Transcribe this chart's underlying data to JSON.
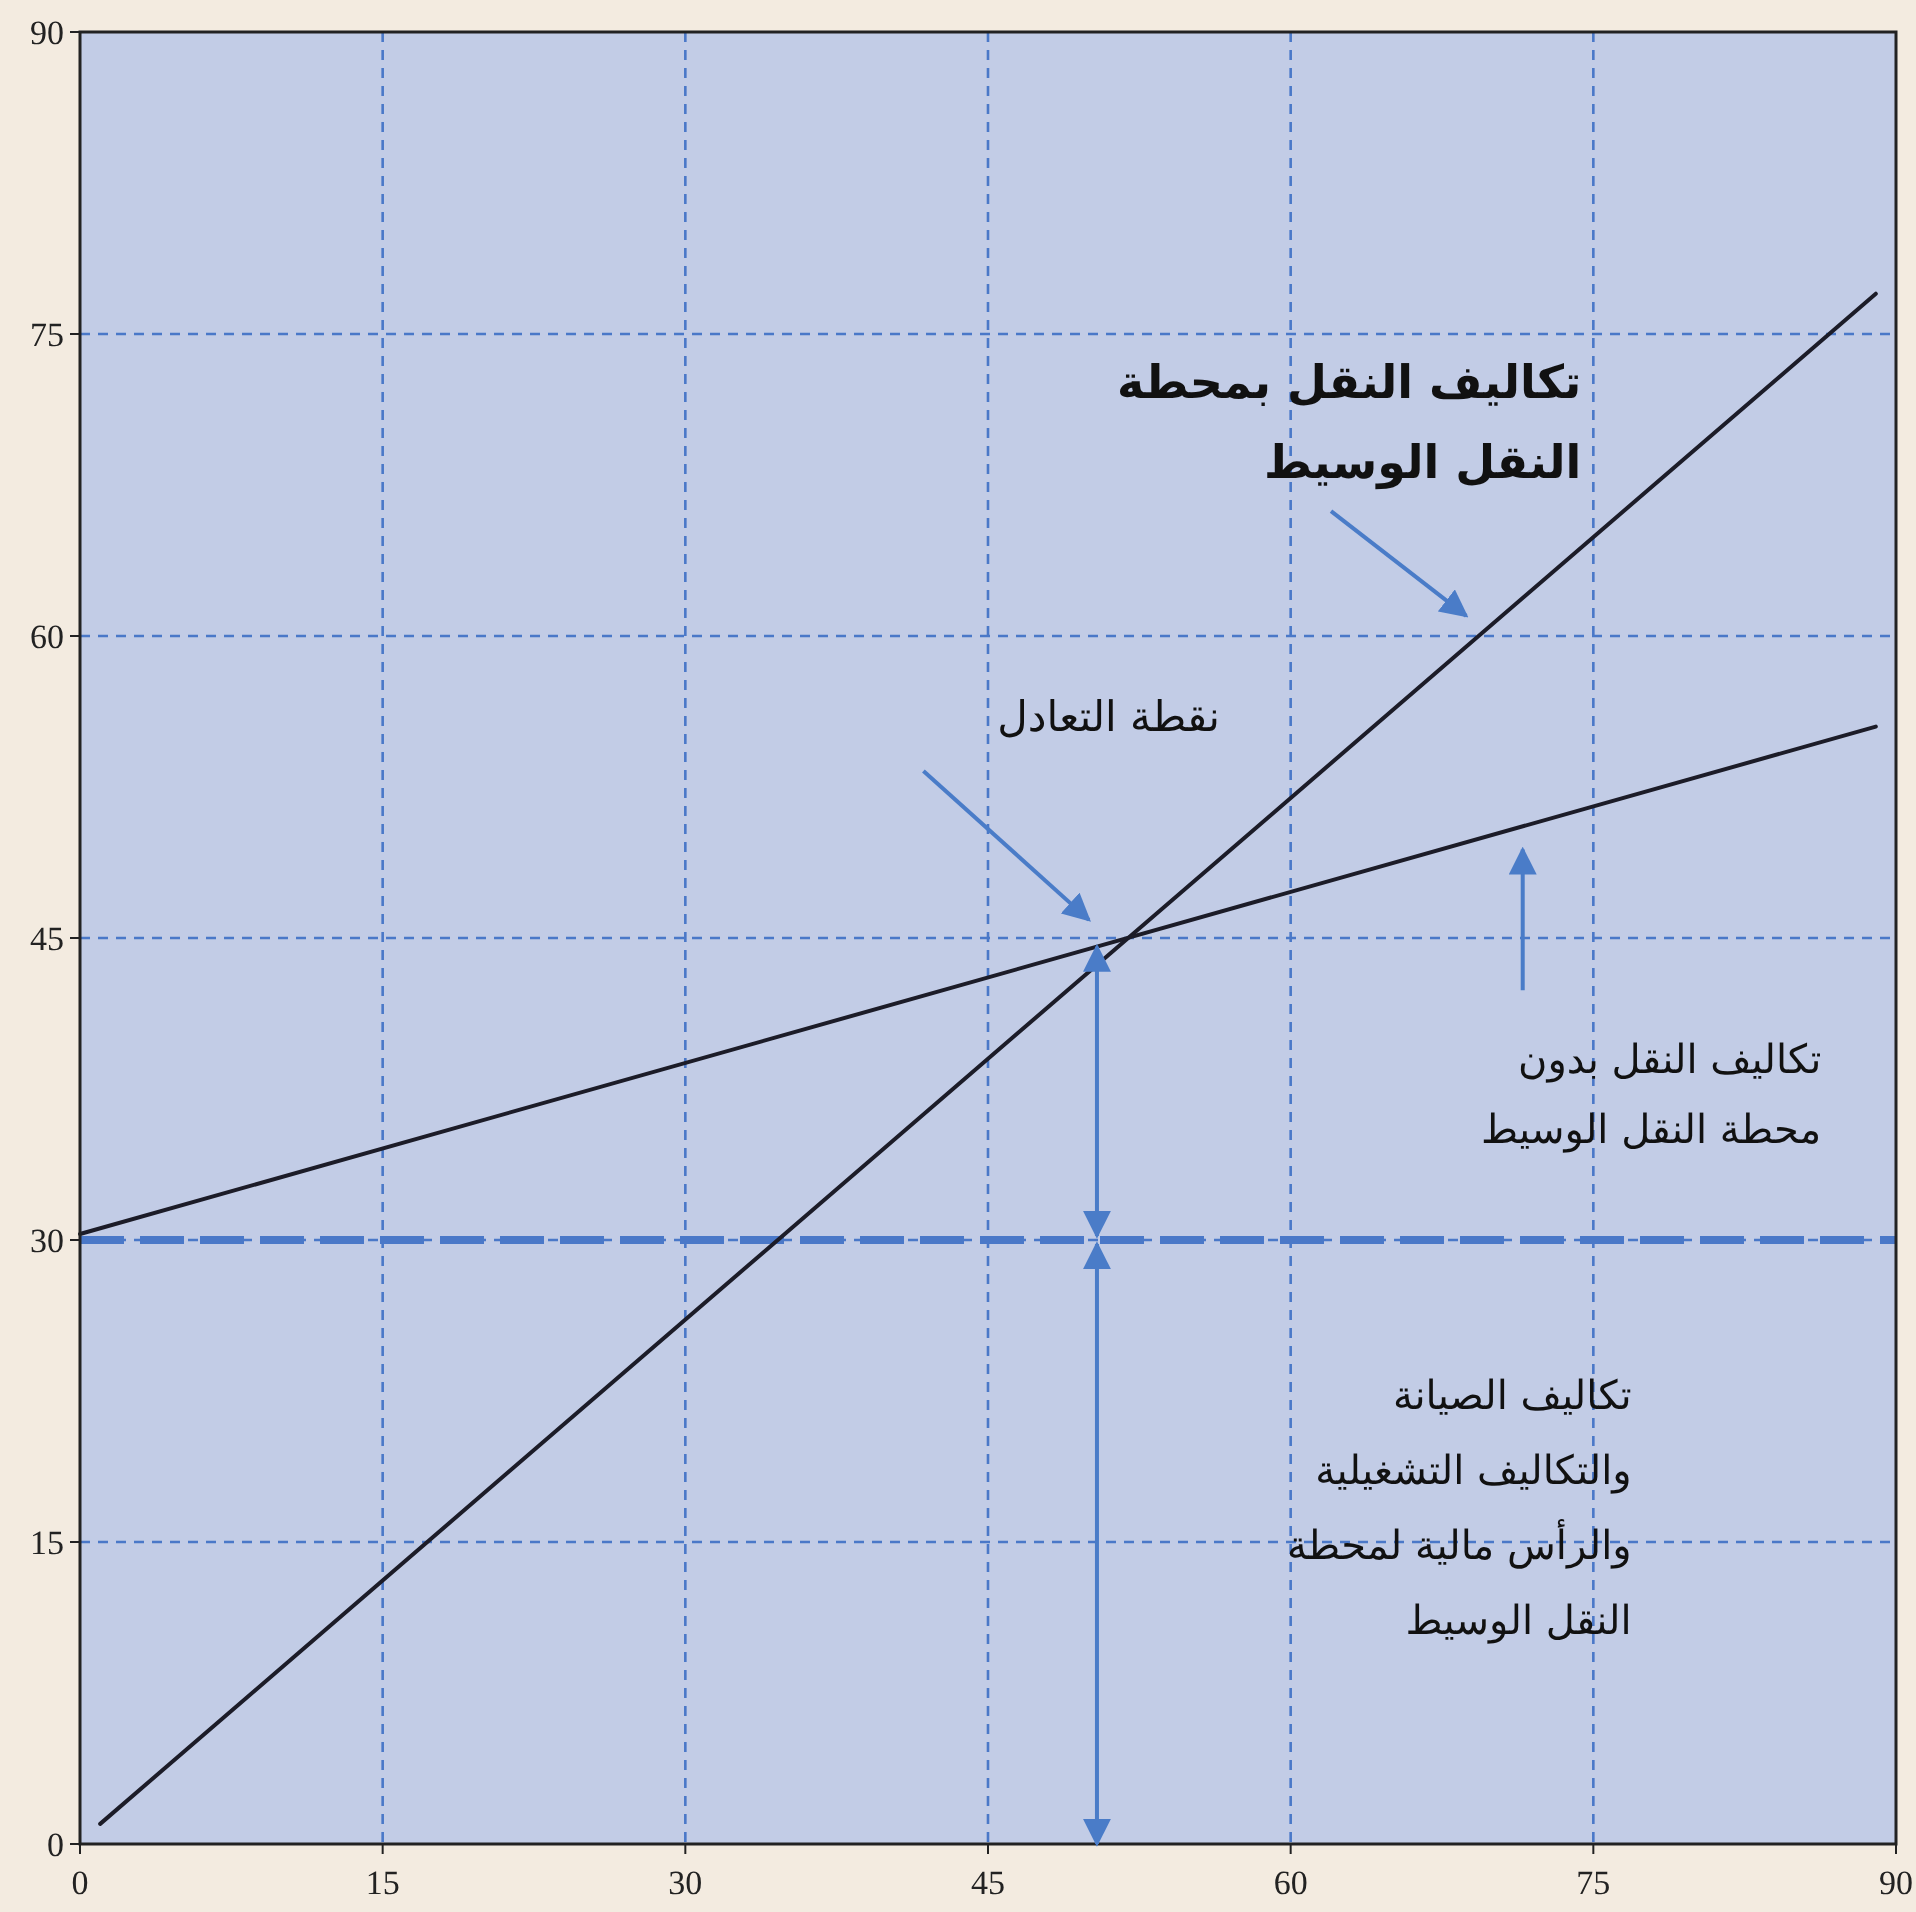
{
  "chart_data": {
    "type": "line",
    "xlim": [
      0,
      90
    ],
    "ylim": [
      0,
      90
    ],
    "xticks": [
      0,
      15,
      30,
      45,
      60,
      75,
      90
    ],
    "yticks": [
      0,
      15,
      30,
      45,
      60,
      75,
      90
    ],
    "grid": true,
    "series": [
      {
        "color": "#1c1c28",
        "x": [
          1,
          89
        ],
        "values": [
          1,
          77
        ]
      },
      {
        "color": "#1c1c28",
        "x": [
          0,
          89
        ],
        "values": [
          30.3,
          55.5
        ]
      }
    ],
    "ref_lines": [
      {
        "axis": "y",
        "value": 30,
        "color": "#4a78c8",
        "line_style": "dashed"
      }
    ],
    "annotations": [
      "تكاليف النقل بمحطة\nالنقل الوسيط",
      "نقطة التعادل",
      "تكاليف النقل بدون\nمحطة النقل الوسيط",
      "تكاليف الصيانة\nوالتكاليف التشغيلية\nوالرأس مالية لمحطة\nالنقل الوسيط"
    ]
  }
}
